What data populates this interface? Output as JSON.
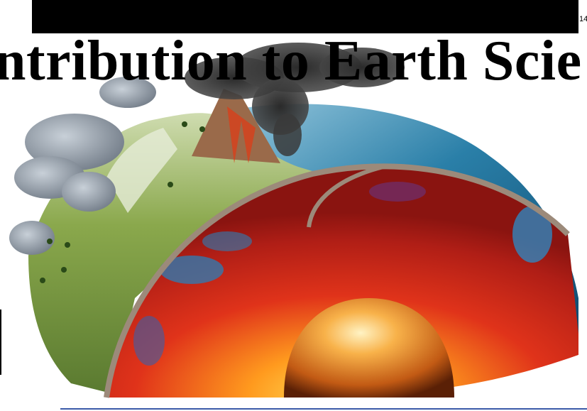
{
  "slide": {
    "title": "ntribution to Earth Scie",
    "page_number": "14"
  },
  "image": {
    "icon": "earth-cross-section-illustration",
    "colors": {
      "core": "#f6a23c",
      "mantle_hot": "#d8231a",
      "mantle_cool": "#2a7fb8",
      "ocean": "#1d6f9a",
      "land": "#7d9a45",
      "smoke": "#3b3b3b",
      "cloud": "#8e9aa8"
    }
  }
}
